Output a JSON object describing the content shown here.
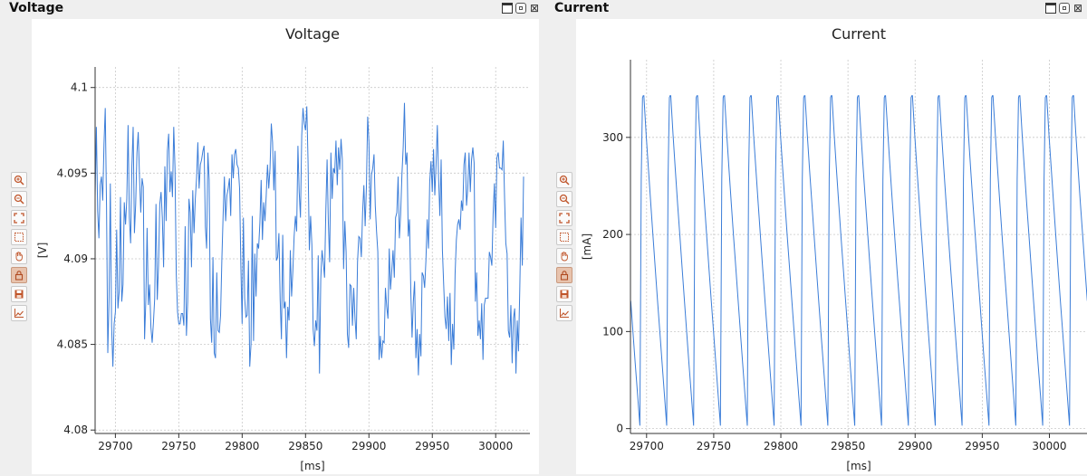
{
  "panels": [
    {
      "title": "Voltage",
      "chart_data": {
        "type": "line",
        "title": "Voltage",
        "xlabel": "[ms]",
        "ylabel": "[V]",
        "xlim": [
          29684,
          30027
        ],
        "ylim": [
          4.0798,
          4.1012
        ],
        "xticks": [
          29700,
          29750,
          29800,
          29850,
          29900,
          29950,
          30000
        ],
        "xtick_labels": [
          "29700",
          "29750",
          "29800",
          "29850",
          "29900",
          "29950",
          "30000"
        ],
        "yticks": [
          4.08,
          4.085,
          4.09,
          4.095,
          4.1
        ],
        "ytick_labels": [
          "4.08",
          "4.085",
          "4.09",
          "4.095",
          "4.1"
        ],
        "grid": true,
        "series": [
          {
            "color": "#3b7dd8",
            "x_start": 29684,
            "x_step": 1,
            "values": [
              4.0936,
              4.0977,
              4.0928,
              4.0912,
              4.0943,
              4.0948,
              4.0934,
              4.0967,
              4.0988,
              4.0931,
              4.0845,
              4.0877,
              4.0944,
              4.0861,
              4.0837,
              4.0862,
              4.0869,
              4.0917,
              4.0871,
              4.0881,
              4.0936,
              4.0875,
              4.0885,
              4.0933,
              4.092,
              4.0935,
              4.0978,
              4.0924,
              4.0909,
              4.0954,
              4.0977,
              4.0915,
              4.0932,
              4.0962,
              4.0974,
              4.0948,
              4.0927,
              4.0947,
              4.0942,
              4.0853,
              4.0876,
              4.0918,
              4.0873,
              4.0885,
              4.086,
              4.0851,
              4.0863,
              4.0877,
              4.0932,
              4.0876,
              4.0896,
              4.0932,
              4.0939,
              4.0924,
              4.0895,
              4.0954,
              4.0922,
              4.0963,
              4.0973,
              4.0939,
              4.0951,
              4.0936,
              4.0977,
              4.0953,
              4.0891,
              4.0869,
              4.0862,
              4.0862,
              4.0868,
              4.0868,
              4.0861,
              4.0919,
              4.0855,
              4.0875,
              4.0935,
              4.0927,
              4.0895,
              4.094,
              4.0915,
              4.0935,
              4.0947,
              4.0968,
              4.0941,
              4.0955,
              4.0958,
              4.0963,
              4.0966,
              4.0919,
              4.0906,
              4.0962,
              4.0946,
              4.0865,
              4.0851,
              4.0901,
              4.0845,
              4.0842,
              4.0892,
              4.0858,
              4.0857,
              4.0867,
              4.0899,
              4.0925,
              4.0948,
              4.0922,
              4.0937,
              4.0941,
              4.0947,
              4.0925,
              4.0961,
              4.0947,
              4.0961,
              4.0964,
              4.0955,
              4.0953,
              4.0941,
              4.0896,
              4.0862,
              4.0924,
              4.0877,
              4.0866,
              4.0867,
              4.0899,
              4.0837,
              4.085,
              4.0925,
              4.0852,
              4.0903,
              4.0878,
              4.0909,
              4.0906,
              4.0921,
              4.0946,
              4.0911,
              4.0933,
              4.0922,
              4.0937,
              4.0955,
              4.0941,
              4.0953,
              4.0979,
              4.0968,
              4.094,
              4.0963,
              4.0899,
              4.0901,
              4.0915,
              4.0876,
              4.0853,
              4.0914,
              4.0871,
              4.0875,
              4.0842,
              4.0872,
              4.0864,
              4.0905,
              4.0878,
              4.0893,
              4.0913,
              4.0925,
              4.0916,
              4.0966,
              4.0939,
              4.0924,
              4.0972,
              4.0988,
              4.0979,
              4.0975,
              4.0989,
              4.0956,
              4.0905,
              4.0925,
              4.0908,
              4.0859,
              4.0849,
              4.0864,
              4.0858,
              4.0902,
              4.0833,
              4.0888,
              4.0905,
              4.0898,
              4.0889,
              4.0928,
              4.0958,
              4.0921,
              4.0898,
              4.0962,
              4.0935,
              4.0953,
              4.095,
              4.0969,
              4.0943,
              4.0965,
              4.0952,
              4.097,
              4.0958,
              4.0894,
              4.0922,
              4.0904,
              4.0856,
              4.0848,
              4.0885,
              4.0884,
              4.0861,
              4.0883,
              4.0865,
              4.0853,
              4.0898,
              4.0913,
              4.0912,
              4.0901,
              4.0927,
              4.0943,
              4.0919,
              4.0942,
              4.0983,
              4.0968,
              4.0923,
              4.0949,
              4.0953,
              4.0961,
              4.0931,
              4.0916,
              4.0904,
              4.0841,
              4.0855,
              4.0842,
              4.0852,
              4.0851,
              4.0883,
              4.0872,
              4.0865,
              4.0906,
              4.0882,
              4.0893,
              4.0905,
              4.0889,
              4.0924,
              4.0927,
              4.0948,
              4.0912,
              4.0926,
              4.0949,
              4.0965,
              4.0991,
              4.0955,
              4.0962,
              4.0913,
              4.0923,
              4.0881,
              4.0854,
              4.0875,
              4.0887,
              4.0842,
              4.0859,
              4.0832,
              4.0856,
              4.0843,
              4.0892,
              4.089,
              4.0883,
              4.0899,
              4.0923,
              4.0906,
              4.0945,
              4.0957,
              4.0939,
              4.0964,
              4.0937,
              4.0955,
              4.0978,
              4.0947,
              4.0925,
              4.0958,
              4.0905,
              4.0885,
              4.0866,
              4.0859,
              4.0878,
              4.0852,
              4.088,
              4.0838,
              4.0862,
              4.0847,
              4.0891,
              4.0911,
              4.092,
              4.0923,
              4.0917,
              4.0934,
              4.0928,
              4.0955,
              4.0962,
              4.0931,
              4.0941,
              4.0962,
              4.0939,
              4.0958,
              4.0965,
              4.0956,
              4.0875,
              4.0892,
              4.0855,
              4.0864,
              4.0853,
              4.0874,
              4.0841,
              4.0873,
              4.0877,
              4.0877,
              4.0877,
              4.0904,
              4.0901,
              4.0896,
              4.0926,
              4.0944,
              4.0918,
              4.0959,
              4.0962,
              4.0953,
              4.0953,
              4.0952,
              4.0969,
              4.0936,
              4.0909,
              4.0903,
              4.0858,
              4.0854,
              4.0873,
              4.0839,
              4.0865,
              4.0871,
              4.0833,
              4.0864,
              4.0846,
              4.0882,
              4.0924,
              4.0896,
              4.0948
            ]
          }
        ]
      }
    },
    {
      "title": "Current",
      "chart_data": {
        "type": "line",
        "title": "Current",
        "xlabel": "[ms]",
        "ylabel": "[mA]",
        "xlim": [
          29688,
          30028
        ],
        "ylim": [
          -5,
          380
        ],
        "xticks": [
          29700,
          29750,
          29800,
          29850,
          29900,
          29950,
          30000
        ],
        "xtick_labels": [
          "29700",
          "29750",
          "29800",
          "29850",
          "29900",
          "29950",
          "30000"
        ],
        "yticks": [
          0,
          100,
          200,
          300
        ],
        "ytick_labels": [
          "0",
          "100",
          "200",
          "300"
        ],
        "grid": true,
        "series": [
          {
            "color": "#3b7dd8",
            "period_ms": 20,
            "first_peak_ms": 29695,
            "peak_value": 343,
            "min_value": 3,
            "rise_ms": 2,
            "plateau_ms": 1,
            "fall_ms": 17,
            "x_end": 30028
          }
        ]
      }
    }
  ]
}
